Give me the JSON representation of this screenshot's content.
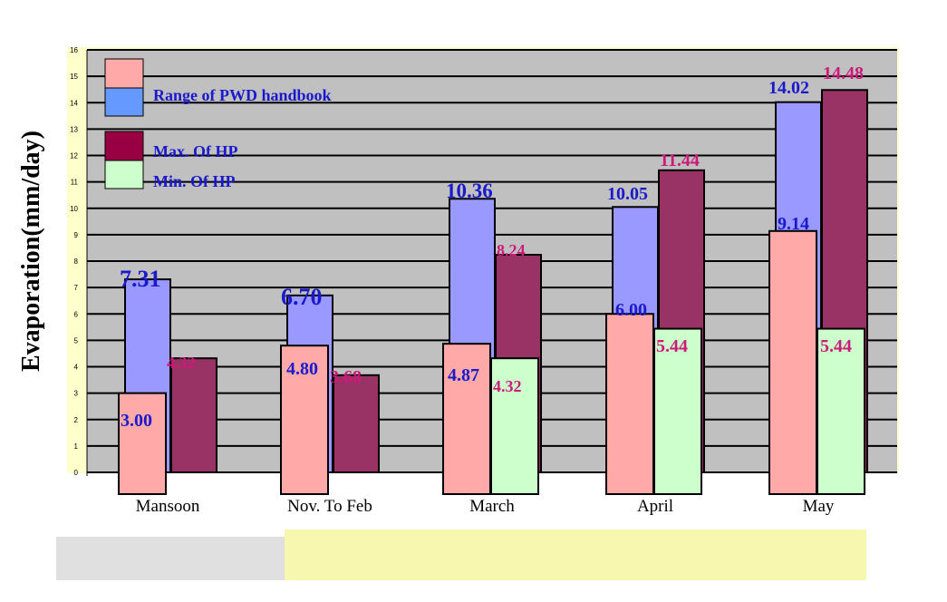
{
  "chart_data": {
    "type": "bar",
    "ylabel": "Evaporation(mm/day)",
    "xlabel": "",
    "ylim": [
      0,
      16
    ],
    "y_ticks": [
      "0",
      "1",
      "2",
      "3",
      "4",
      "5",
      "6",
      "7",
      "8",
      "9",
      "10",
      "11",
      "12",
      "13",
      "14",
      "15",
      "16"
    ],
    "categories": [
      "Mansoon",
      "Nov. To Feb",
      "March",
      "April",
      "May"
    ],
    "legend": [
      {
        "label": "",
        "color": "#ffaaa8"
      },
      {
        "label": "Range of  PWD handbook",
        "color": "#6699ff"
      },
      {
        "label": "Max. Of  HP",
        "color": "#990044"
      },
      {
        "label": "Min. Of HP",
        "color": "#ccffcc"
      }
    ],
    "series": [
      {
        "name": "Range of  PWD handbook",
        "role": "pwd_max",
        "color": "#9999ff",
        "values": [
          7.31,
          6.7,
          10.36,
          10.05,
          14.02
        ],
        "labels": [
          "7.31",
          "6.70",
          "10.36",
          "10.05",
          "14.02"
        ],
        "label_color": "#1a1acc"
      },
      {
        "name": "",
        "role": "pwd_min",
        "color": "#ffaaa8",
        "values": [
          3.0,
          4.8,
          4.87,
          6.0,
          9.14
        ],
        "labels": [
          "3.00",
          "4.80",
          "4.87",
          "6.00",
          "9.14"
        ],
        "label_color": "#1a1acc"
      },
      {
        "name": "Max. Of  HP",
        "role": "hp_max",
        "color": "#993366",
        "values": [
          4.32,
          3.68,
          8.24,
          11.44,
          14.48
        ],
        "labels": [
          "4.32",
          "3.68",
          "8.24",
          "11.44",
          "14.48"
        ],
        "label_color": "#cc1a7a"
      },
      {
        "name": "Min. Of HP",
        "role": "hp_min",
        "color": "#ccffcc",
        "values": [
          null,
          null,
          4.32,
          5.44,
          5.44
        ],
        "labels": [
          "",
          "",
          "4.32",
          "5.44",
          "5.44"
        ],
        "label_color": "#cc1a7a"
      }
    ],
    "plot_background": "#c0c0c0",
    "frame_background": "#ffffcc",
    "grid": true,
    "legend_position": "top-left inside plot"
  }
}
